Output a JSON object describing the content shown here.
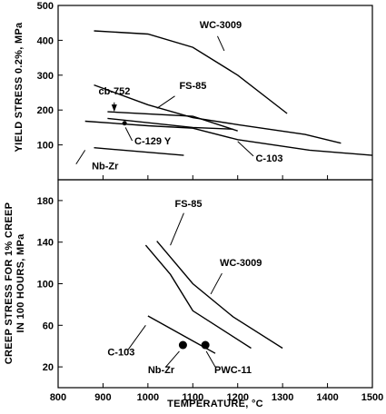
{
  "chart_data": [
    {
      "type": "line",
      "ylabel": "YIELD STRESS 0.2%, MPa",
      "xlim": [
        800,
        1500
      ],
      "ylim": [
        0,
        500
      ],
      "yticks": [
        100,
        200,
        300,
        400,
        500
      ],
      "grid": false,
      "series": [
        {
          "name": "WC-3009",
          "x": [
            880,
            1000,
            1100,
            1200,
            1310
          ],
          "y": [
            427,
            418,
            380,
            300,
            190
          ]
        },
        {
          "name": "FS-85",
          "x": [
            880,
            1000,
            1100,
            1200,
            1350,
            1430
          ],
          "y": [
            272,
            215,
            178,
            158,
            130,
            105
          ]
        },
        {
          "name": "cb-752",
          "x": [
            910,
            1100,
            1200
          ],
          "y": [
            195,
            182,
            140
          ]
        },
        {
          "name": "C-129 Y",
          "x": [
            910,
            1100,
            1190
          ],
          "y": [
            176,
            150,
            145
          ]
        },
        {
          "name": "C-103",
          "x": [
            860,
            1000,
            1100,
            1200,
            1360,
            1500
          ],
          "y": [
            168,
            155,
            148,
            115,
            85,
            70
          ]
        },
        {
          "name": "Nb-Zr",
          "x": [
            880,
            1080
          ],
          "y": [
            92,
            70
          ]
        }
      ],
      "annotations": [
        {
          "text": "WC-3009",
          "x": 1115,
          "y": 435
        },
        {
          "text": "cb-752",
          "x": 890,
          "y": 245
        },
        {
          "text": "FS-85",
          "x": 1070,
          "y": 260
        },
        {
          "text": "C-129 Y",
          "x": 970,
          "y": 102
        },
        {
          "text": "C-103",
          "x": 1240,
          "y": 52
        },
        {
          "text": "Nb-Zr",
          "x": 875,
          "y": 30
        }
      ]
    },
    {
      "type": "line",
      "xlabel": "TEMPERATURE, °C",
      "ylabel": "CREEP STRESS FOR 1% CREEP IN 100 HOURS, MPa",
      "xlim": [
        800,
        1500
      ],
      "ylim": [
        0,
        200
      ],
      "xticks": [
        800,
        900,
        1000,
        1100,
        1200,
        1300,
        1400,
        1500
      ],
      "yticks": [
        20,
        60,
        100,
        140,
        180
      ],
      "grid": false,
      "series": [
        {
          "name": "FS-85",
          "x": [
            1020,
            1100,
            1190,
            1300
          ],
          "y": [
            141,
            100,
            68,
            38
          ]
        },
        {
          "name": "WC-3009",
          "x": [
            995,
            1050,
            1100,
            1230
          ],
          "y": [
            137,
            109,
            74,
            38
          ]
        },
        {
          "name": "C-103",
          "x": [
            1000,
            1100,
            1150
          ],
          "y": [
            69,
            45,
            33
          ]
        },
        {
          "name": "Nb-Zr",
          "x": [
            1078
          ],
          "y": [
            41
          ]
        },
        {
          "name": "PWC-11",
          "x": [
            1128
          ],
          "y": [
            41
          ]
        }
      ],
      "annotations": [
        {
          "text": "FS-85",
          "x": 1060,
          "y": 174
        },
        {
          "text": "WC-3009",
          "x": 1160,
          "y": 117
        },
        {
          "text": "C-103",
          "x": 910,
          "y": 31
        },
        {
          "text": "Nb-Zr",
          "x": 1000,
          "y": 14
        },
        {
          "text": "PWC-11",
          "x": 1148,
          "y": 14
        }
      ]
    }
  ]
}
